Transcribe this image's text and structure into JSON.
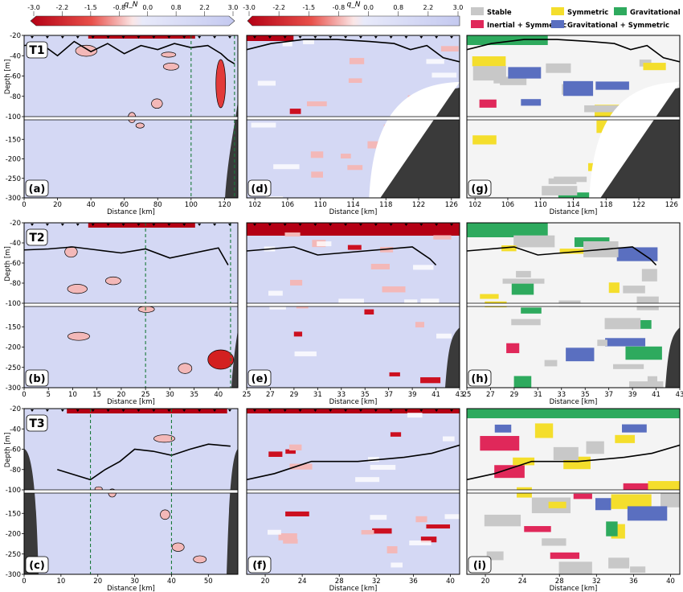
{
  "colorbars": {
    "symbol": "q_N",
    "ticks": [
      "-3.0",
      "-2.2",
      "-1.5",
      "-0.8",
      "0.0",
      "0.8",
      "2.2",
      "3.0"
    ]
  },
  "legend": [
    {
      "label": "Stable",
      "color": "#c8c8c8"
    },
    {
      "label": "Inertial + Symmetric",
      "color": "#e0285a"
    },
    {
      "label": "Symmetric",
      "color": "#f4de2c"
    },
    {
      "label": "Gravitational + Symmetric",
      "color": "#5a6fc0"
    },
    {
      "label": "Gravitational",
      "color": "#2eaa5e"
    }
  ],
  "colors": {
    "stable": "#c8c8c8",
    "inertial_symmetric": "#e0285a",
    "symmetric": "#f4de2c",
    "grav_symmetric": "#5a6fc0",
    "gravitational": "#2eaa5e",
    "positive": "#d4d8f4",
    "negative_strong": "#b40014",
    "negative_light": "#f3b8b8",
    "topography": "#3a3a3a",
    "mixed_layer": "#000000",
    "stations": "#1a7a3a"
  },
  "chart_data": [
    {
      "type": "heatmap",
      "panel": "(a)",
      "transect": "T1",
      "xlabel": "Distance [km]",
      "ylabel": "Depth [m]",
      "xlim": [
        0,
        128
      ],
      "xticks": [
        "0",
        "20",
        "40",
        "60",
        "80",
        "100",
        "120"
      ],
      "ylim": [
        -300,
        -20
      ],
      "yticks": [
        "-20",
        "-40",
        "-60",
        "-80",
        "-100",
        "-150",
        "-200",
        "-250",
        "-300"
      ],
      "mixed_layer_depth": [
        [
          0,
          -30
        ],
        [
          10,
          -28
        ],
        [
          20,
          -40
        ],
        [
          30,
          -26
        ],
        [
          40,
          -36
        ],
        [
          50,
          -28
        ],
        [
          60,
          -38
        ],
        [
          70,
          -30
        ],
        [
          80,
          -34
        ],
        [
          90,
          -28
        ],
        [
          100,
          -32
        ],
        [
          110,
          -30
        ],
        [
          118,
          -38
        ],
        [
          122,
          -44
        ],
        [
          126,
          -48
        ]
      ],
      "station_lines_km": [
        100,
        126
      ]
    },
    {
      "type": "heatmap",
      "panel": "(d)",
      "xlabel": "Distance [km]",
      "xlim": [
        101,
        127
      ],
      "xticks": [
        "102",
        "106",
        "110",
        "114",
        "118",
        "122",
        "126"
      ],
      "ylim": [
        -300,
        -20
      ],
      "mixed_layer_depth": [
        [
          101,
          -34
        ],
        [
          104,
          -28
        ],
        [
          108,
          -24
        ],
        [
          112,
          -24
        ],
        [
          116,
          -26
        ],
        [
          119,
          -28
        ],
        [
          121,
          -34
        ],
        [
          123,
          -30
        ],
        [
          125,
          -42
        ],
        [
          127,
          -46
        ]
      ]
    },
    {
      "type": "heatmap",
      "panel": "(g)",
      "xlabel": "Distance [km]",
      "xlim": [
        101,
        127
      ],
      "xticks": [
        "102",
        "106",
        "110",
        "114",
        "118",
        "122",
        "126"
      ],
      "ylim": [
        -300,
        -20
      ],
      "mixed_layer_depth": [
        [
          101,
          -34
        ],
        [
          104,
          -28
        ],
        [
          108,
          -24
        ],
        [
          112,
          -24
        ],
        [
          116,
          -26
        ],
        [
          119,
          -28
        ],
        [
          121,
          -34
        ],
        [
          123,
          -30
        ],
        [
          125,
          -42
        ],
        [
          127,
          -46
        ]
      ]
    },
    {
      "type": "heatmap",
      "panel": "(b)",
      "transect": "T2",
      "xlabel": "Distance [km]",
      "ylabel": "Depth [m]",
      "xlim": [
        0,
        44
      ],
      "xticks": [
        "0",
        "5",
        "10",
        "15",
        "20",
        "25",
        "30",
        "35",
        "40"
      ],
      "ylim": [
        -300,
        -20
      ],
      "yticks": [
        "-20",
        "-40",
        "-60",
        "-80",
        "-100",
        "-150",
        "-200",
        "-250",
        "-300"
      ],
      "mixed_layer_depth": [
        [
          0,
          -47
        ],
        [
          5,
          -46
        ],
        [
          10,
          -44
        ],
        [
          15,
          -47
        ],
        [
          20,
          -50
        ],
        [
          25,
          -46
        ],
        [
          30,
          -55
        ],
        [
          35,
          -50
        ],
        [
          40,
          -45
        ],
        [
          42,
          -62
        ]
      ],
      "station_lines_km": [
        25,
        42.5
      ]
    },
    {
      "type": "heatmap",
      "panel": "(e)",
      "xlabel": "Distance [km]",
      "xlim": [
        25,
        43
      ],
      "xticks": [
        "25",
        "27",
        "29",
        "31",
        "33",
        "35",
        "37",
        "39",
        "41",
        "43"
      ],
      "ylim": [
        -300,
        -20
      ],
      "mixed_layer_depth": [
        [
          25,
          -48
        ],
        [
          29,
          -44
        ],
        [
          31,
          -52
        ],
        [
          35,
          -48
        ],
        [
          39,
          -44
        ],
        [
          40.5,
          -56
        ],
        [
          41,
          -62
        ]
      ]
    },
    {
      "type": "heatmap",
      "panel": "(h)",
      "xlabel": "Distance [km]",
      "xlim": [
        25,
        43
      ],
      "xticks": [
        "25",
        "27",
        "29",
        "31",
        "33",
        "35",
        "37",
        "39",
        "41",
        "43"
      ],
      "ylim": [
        -300,
        -20
      ],
      "mixed_layer_depth": [
        [
          25,
          -48
        ],
        [
          29,
          -44
        ],
        [
          31,
          -52
        ],
        [
          35,
          -48
        ],
        [
          39,
          -44
        ],
        [
          40.5,
          -56
        ],
        [
          41,
          -62
        ]
      ]
    },
    {
      "type": "heatmap",
      "panel": "(c)",
      "transect": "T3",
      "xlabel": "Distance [km]",
      "ylabel": "Depth [m]",
      "xlim": [
        0,
        58
      ],
      "xticks": [
        "0",
        "10",
        "20",
        "30",
        "40",
        "50"
      ],
      "ylim": [
        -300,
        -20
      ],
      "yticks": [
        "-20",
        "-40",
        "-60",
        "-80",
        "-100",
        "-150",
        "-200",
        "-250",
        "-300"
      ],
      "mixed_layer_depth": [
        [
          9,
          -80
        ],
        [
          18,
          -90
        ],
        [
          22,
          -80
        ],
        [
          26,
          -72
        ],
        [
          30,
          -60
        ],
        [
          35,
          -62
        ],
        [
          40,
          -66
        ],
        [
          45,
          -60
        ],
        [
          50,
          -55
        ],
        [
          56,
          -57
        ]
      ],
      "station_lines_km": [
        18,
        40
      ]
    },
    {
      "type": "heatmap",
      "panel": "(f)",
      "xlabel": "Distance [km]",
      "xlim": [
        18,
        41
      ],
      "xticks": [
        "20",
        "24",
        "28",
        "32",
        "36",
        "40"
      ],
      "ylim": [
        -300,
        -20
      ],
      "mixed_layer_depth": [
        [
          18,
          -90
        ],
        [
          21,
          -84
        ],
        [
          25,
          -72
        ],
        [
          30,
          -72
        ],
        [
          35,
          -68
        ],
        [
          38,
          -64
        ],
        [
          41,
          -56
        ]
      ]
    },
    {
      "type": "heatmap",
      "panel": "(i)",
      "xlabel": "Distance [km]",
      "xlim": [
        18,
        41
      ],
      "xticks": [
        "20",
        "24",
        "28",
        "32",
        "36",
        "40"
      ],
      "ylim": [
        -300,
        -20
      ],
      "mixed_layer_depth": [
        [
          18,
          -90
        ],
        [
          21,
          -84
        ],
        [
          25,
          -72
        ],
        [
          30,
          -72
        ],
        [
          35,
          -68
        ],
        [
          38,
          -64
        ],
        [
          41,
          -56
        ]
      ]
    }
  ]
}
